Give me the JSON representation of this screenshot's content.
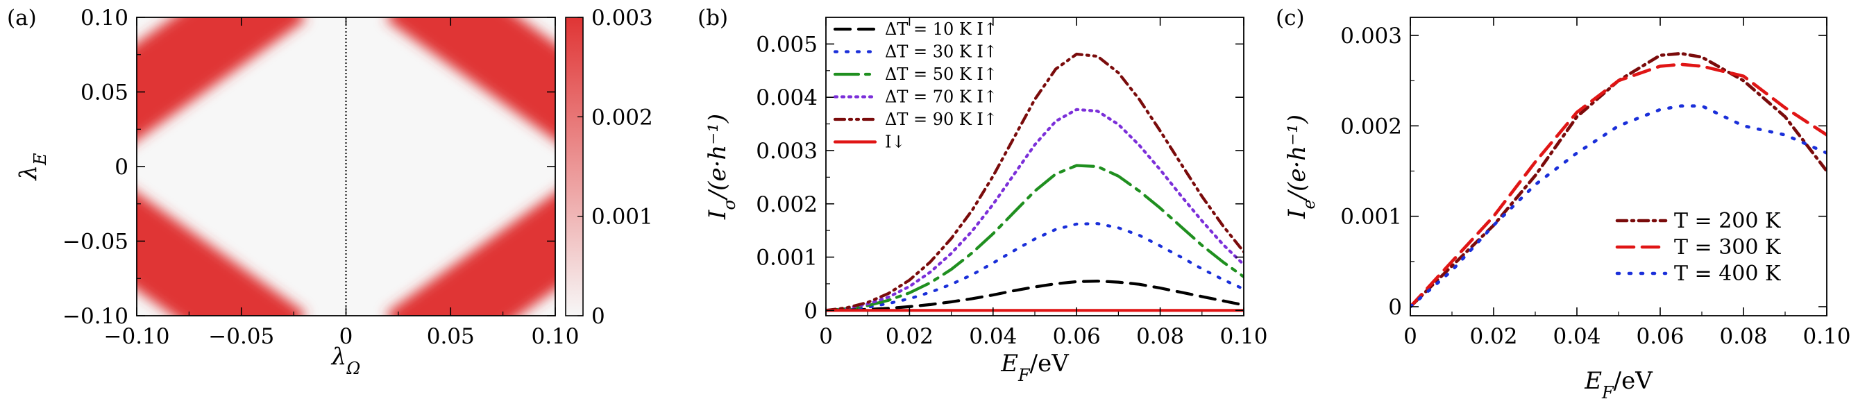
{
  "chart_data": [
    {
      "panel": "(a)",
      "type": "heatmap",
      "title": "",
      "xlabel": "λ_Ω",
      "ylabel": "λ_E",
      "xlim": [
        -0.1,
        0.1
      ],
      "ylim": [
        -0.1,
        0.1
      ],
      "x_ticks": [
        "−0.10",
        "−0.05",
        "0",
        "0.05",
        "0.10"
      ],
      "y_ticks": [
        "−0.10",
        "−0.05",
        "0",
        "0.05",
        "0.10"
      ],
      "description_of_pattern": "high-value bands along |λ_E| + |λ_Ω| ≈ 0.15",
      "band_center": 0.15,
      "band_width": 0.018,
      "colorbar": {
        "range": [
          0,
          0.003
        ],
        "ticks": [
          "0",
          "0.001",
          "0.002",
          "0.003"
        ],
        "low_color": "#f7f7f7",
        "high_color": "#e03535"
      }
    },
    {
      "panel": "(b)",
      "type": "line",
      "xlabel": "E_F/eV",
      "ylabel": "I_σ/(e·h⁻¹)",
      "xlim": [
        0,
        0.1
      ],
      "ylim": [
        -0.0001,
        0.0055
      ],
      "x_ticks": [
        "0",
        "0.02",
        "0.04",
        "0.06",
        "0.08",
        "0.10"
      ],
      "y_ticks": [
        "0",
        "0.001",
        "0.002",
        "0.003",
        "0.004",
        "0.005"
      ],
      "x": [
        0,
        0.005,
        0.01,
        0.015,
        0.02,
        0.025,
        0.03,
        0.035,
        0.04,
        0.045,
        0.05,
        0.055,
        0.06,
        0.065,
        0.07,
        0.075,
        0.08,
        0.085,
        0.09,
        0.095,
        0.1
      ],
      "series": [
        {
          "name": "ΔT = 10 K I↑",
          "color": "#000000",
          "dash": "22,12",
          "values": [
            0,
            1e-05,
            2e-05,
            4e-05,
            7e-05,
            0.00011,
            0.00016,
            0.00022,
            0.00029,
            0.00037,
            0.00044,
            0.0005,
            0.00054,
            0.00055,
            0.00053,
            0.00049,
            0.00042,
            0.00034,
            0.00026,
            0.00018,
            0.0001
          ]
        },
        {
          "name": "ΔT = 30 K I↑",
          "color": "#1a2fd9",
          "dash": "3,13",
          "values": [
            0,
            2e-05,
            6e-05,
            0.00013,
            0.00022,
            0.00034,
            0.00049,
            0.00067,
            0.00089,
            0.00112,
            0.00134,
            0.00152,
            0.00162,
            0.00163,
            0.00155,
            0.00141,
            0.00121,
            0.001,
            0.00078,
            0.00058,
            0.0004
          ]
        },
        {
          "name": "ΔT = 50 K I↑",
          "color": "#1f8f1f",
          "dash": "34,10,6,10",
          "values": [
            0,
            3e-05,
            9e-05,
            0.00019,
            0.00033,
            0.00052,
            0.00077,
            0.00108,
            0.00144,
            0.00184,
            0.00224,
            0.00256,
            0.00272,
            0.0027,
            0.00252,
            0.00224,
            0.00192,
            0.00157,
            0.00122,
            0.00091,
            0.00063
          ]
        },
        {
          "name": "ΔT = 70 K I↑",
          "color": "#7b2fd9",
          "dash": "3,7",
          "values": [
            0,
            4e-05,
            0.00012,
            0.00025,
            0.00045,
            0.00072,
            0.00107,
            0.00149,
            0.00199,
            0.00255,
            0.00311,
            0.00355,
            0.00377,
            0.00374,
            0.00349,
            0.0031,
            0.00264,
            0.00215,
            0.00168,
            0.00124,
            0.00086
          ]
        },
        {
          "name": "ΔT = 90 K I↑",
          "color": "#7a0b0b",
          "dash": "14,7,3,7,3,7",
          "values": [
            0,
            5e-05,
            0.00015,
            0.00032,
            0.00057,
            0.00091,
            0.00135,
            0.00188,
            0.00252,
            0.00324,
            0.00396,
            0.00453,
            0.00481,
            0.00477,
            0.00446,
            0.00396,
            0.00337,
            0.00275,
            0.00214,
            0.00159,
            0.0011
          ]
        },
        {
          "name": "I↓",
          "color": "#e01515",
          "dash": "",
          "values": [
            0,
            0,
            0,
            0,
            0,
            0,
            0,
            0,
            0,
            0,
            0,
            0,
            0,
            0,
            0,
            0,
            0,
            0,
            0,
            0,
            0
          ]
        }
      ],
      "legend_position": "top-left"
    },
    {
      "panel": "(c)",
      "type": "line",
      "xlabel": "E_F/eV",
      "ylabel": "I_e/(e·h⁻¹)",
      "xlim": [
        0,
        0.1
      ],
      "ylim": [
        -0.0001,
        0.0032
      ],
      "x_ticks": [
        "0",
        "0.02",
        "0.04",
        "0.06",
        "0.08",
        "0.10"
      ],
      "y_ticks": [
        "0",
        "0.001",
        "0.002",
        "0.003"
      ],
      "x": [
        0,
        0.01,
        0.02,
        0.03,
        0.04,
        0.05,
        0.06,
        0.065,
        0.07,
        0.08,
        0.09,
        0.1
      ],
      "series": [
        {
          "name": "T = 200 K",
          "color": "#7a0b0b",
          "dash": "14,7,3,7",
          "values": [
            0,
            0.00045,
            0.0009,
            0.00145,
            0.0021,
            0.0025,
            0.00278,
            0.0028,
            0.00276,
            0.0025,
            0.0021,
            0.0015
          ]
        },
        {
          "name": "T = 300 K",
          "color": "#e01515",
          "dash": "24,12",
          "values": [
            0,
            0.0005,
            0.001,
            0.0016,
            0.00215,
            0.0025,
            0.00266,
            0.00268,
            0.00266,
            0.00255,
            0.0022,
            0.0019
          ]
        },
        {
          "name": "T = 400 K",
          "color": "#1a2fd9",
          "dash": "3,14",
          "values": [
            0,
            0.0004,
            0.0009,
            0.00135,
            0.0017,
            0.002,
            0.00218,
            0.00222,
            0.00222,
            0.002,
            0.0019,
            0.0017
          ]
        }
      ],
      "legend_position": "bottom-right"
    }
  ]
}
